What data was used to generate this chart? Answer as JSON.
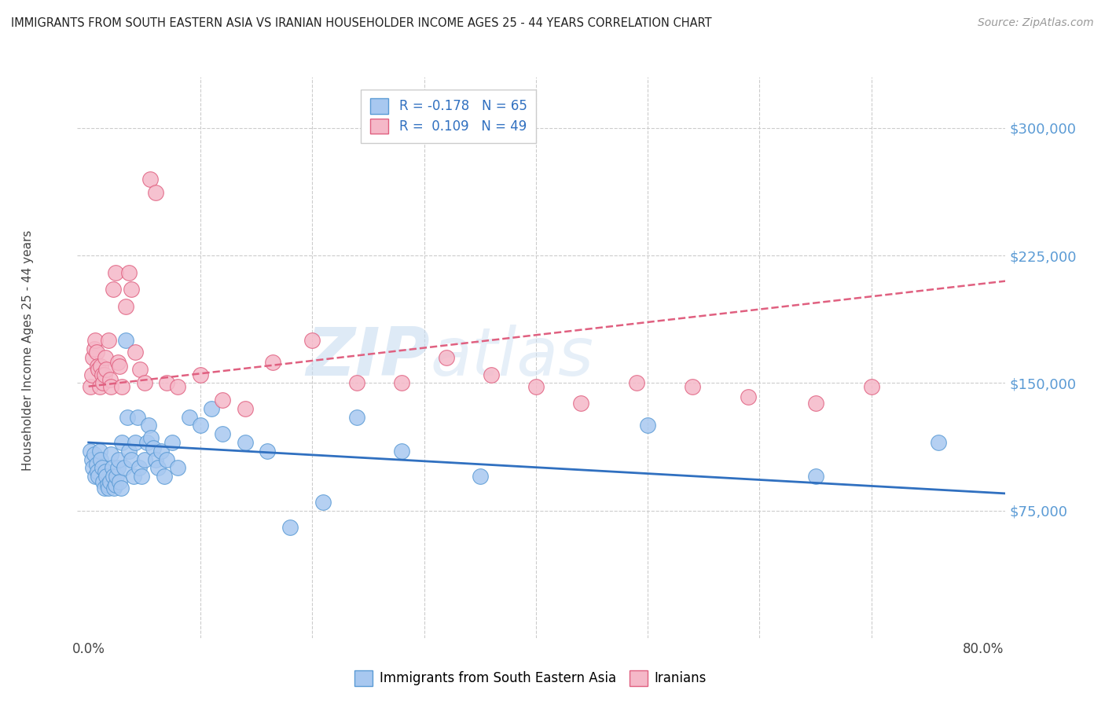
{
  "title": "IMMIGRANTS FROM SOUTH EASTERN ASIA VS IRANIAN HOUSEHOLDER INCOME AGES 25 - 44 YEARS CORRELATION CHART",
  "source": "Source: ZipAtlas.com",
  "ylabel": "Householder Income Ages 25 - 44 years",
  "xlim": [
    -0.01,
    0.82
  ],
  "ylim": [
    0,
    330000
  ],
  "yticks": [
    75000,
    150000,
    225000,
    300000
  ],
  "ytick_labels": [
    "$75,000",
    "$150,000",
    "$225,000",
    "$300,000"
  ],
  "xticks": [
    0.0,
    0.1,
    0.2,
    0.3,
    0.4,
    0.5,
    0.6,
    0.7,
    0.8
  ],
  "color_blue": "#A8C8F0",
  "color_blue_edge": "#5B9BD5",
  "color_pink": "#F5B8C8",
  "color_pink_edge": "#E06080",
  "color_blue_line": "#3070C0",
  "color_pink_line": "#E06080",
  "watermark_zip": "ZIP",
  "watermark_atlas": "atlas",
  "blue_R": -0.178,
  "blue_N": 65,
  "pink_R": 0.109,
  "pink_N": 49,
  "blue_x": [
    0.002,
    0.003,
    0.004,
    0.005,
    0.006,
    0.007,
    0.008,
    0.009,
    0.01,
    0.011,
    0.012,
    0.013,
    0.014,
    0.015,
    0.016,
    0.017,
    0.018,
    0.019,
    0.02,
    0.021,
    0.022,
    0.023,
    0.024,
    0.025,
    0.026,
    0.027,
    0.028,
    0.029,
    0.03,
    0.032,
    0.033,
    0.035,
    0.036,
    0.038,
    0.04,
    0.042,
    0.044,
    0.045,
    0.047,
    0.05,
    0.052,
    0.054,
    0.056,
    0.058,
    0.06,
    0.062,
    0.065,
    0.068,
    0.07,
    0.075,
    0.08,
    0.09,
    0.1,
    0.11,
    0.12,
    0.14,
    0.16,
    0.18,
    0.21,
    0.24,
    0.28,
    0.35,
    0.5,
    0.65,
    0.76
  ],
  "blue_y": [
    110000,
    105000,
    100000,
    108000,
    95000,
    102000,
    98000,
    95000,
    110000,
    105000,
    100000,
    92000,
    88000,
    98000,
    95000,
    90000,
    88000,
    92000,
    108000,
    100000,
    95000,
    88000,
    90000,
    95000,
    100000,
    105000,
    92000,
    88000,
    115000,
    100000,
    175000,
    130000,
    110000,
    105000,
    95000,
    115000,
    130000,
    100000,
    95000,
    105000,
    115000,
    125000,
    118000,
    112000,
    105000,
    100000,
    110000,
    95000,
    105000,
    115000,
    100000,
    130000,
    125000,
    135000,
    120000,
    115000,
    110000,
    65000,
    80000,
    130000,
    110000,
    95000,
    125000,
    95000,
    115000
  ],
  "pink_x": [
    0.002,
    0.003,
    0.004,
    0.005,
    0.006,
    0.007,
    0.008,
    0.009,
    0.01,
    0.011,
    0.012,
    0.013,
    0.014,
    0.015,
    0.016,
    0.018,
    0.019,
    0.02,
    0.022,
    0.024,
    0.026,
    0.028,
    0.03,
    0.033,
    0.036,
    0.038,
    0.042,
    0.046,
    0.05,
    0.055,
    0.06,
    0.07,
    0.08,
    0.1,
    0.12,
    0.14,
    0.165,
    0.2,
    0.24,
    0.28,
    0.32,
    0.36,
    0.4,
    0.44,
    0.49,
    0.54,
    0.59,
    0.65,
    0.7
  ],
  "pink_y": [
    148000,
    155000,
    165000,
    170000,
    175000,
    168000,
    160000,
    158000,
    148000,
    160000,
    155000,
    150000,
    155000,
    165000,
    158000,
    175000,
    152000,
    148000,
    205000,
    215000,
    162000,
    160000,
    148000,
    195000,
    215000,
    205000,
    168000,
    158000,
    150000,
    270000,
    262000,
    150000,
    148000,
    155000,
    140000,
    135000,
    162000,
    175000,
    150000,
    150000,
    165000,
    155000,
    148000,
    138000,
    150000,
    148000,
    142000,
    138000,
    148000
  ]
}
